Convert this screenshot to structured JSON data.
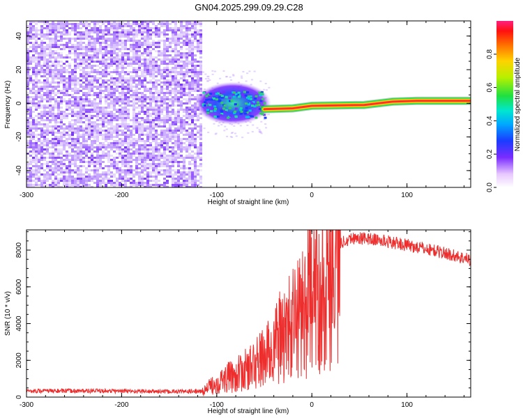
{
  "title": "GN04.2025.299.09.29.C28",
  "colors": {
    "series": "#ee2d2d",
    "ridge": "#ff3030",
    "noise": "#7b2fff",
    "frame": "#000000"
  },
  "chart_data": [
    {
      "type": "heatmap",
      "xlabel": "Height of straight line (km)",
      "ylabel": "Frequency (Hz)",
      "xlim": [
        -300,
        167
      ],
      "ylim": [
        -50,
        49
      ],
      "xticks": [
        "-300",
        "-200",
        "-100",
        "0",
        "100"
      ],
      "yticks": [
        "-40",
        "-20",
        "0",
        "20",
        "40"
      ],
      "xtick_values": [
        -300,
        -200,
        -100,
        0,
        100
      ],
      "ytick_values": [
        -40,
        -20,
        0,
        20,
        40
      ],
      "colorbar": {
        "label": "Normalized spectral amplitude",
        "range": [
          0.0,
          1.0
        ],
        "ticks": [
          "0.0",
          "0.2",
          "0.4",
          "0.6",
          "0.8"
        ],
        "tick_values": [
          0.0,
          0.2,
          0.4,
          0.6,
          0.8
        ]
      },
      "regions": [
        {
          "x_range": [
            -300,
            -116
          ],
          "freq_range": [
            -50,
            49
          ],
          "amplitude": 0.05
        },
        {
          "x_range": [
            -116,
            -50
          ],
          "freq_center": 0,
          "freq_halfwidth": 8,
          "amplitude": 0.45
        },
        {
          "x_range": [
            -50,
            -20
          ],
          "freq_center": -3,
          "freq_halfwidth": 3,
          "amplitude": 0.9
        }
      ],
      "ridge": [
        {
          "x": -50,
          "freq": -3.5
        },
        {
          "x": -20,
          "freq": -3
        },
        {
          "x": 0,
          "freq": -1.5
        },
        {
          "x": 55,
          "freq": -1
        },
        {
          "x": 70,
          "freq": 0
        },
        {
          "x": 85,
          "freq": 1
        },
        {
          "x": 110,
          "freq": 1.5
        },
        {
          "x": 167,
          "freq": 1.5
        }
      ]
    },
    {
      "type": "line",
      "xlabel": "Height of straight line (km)",
      "ylabel": "SNR (10 * v/v)",
      "xlim": [
        -300,
        167
      ],
      "ylim": [
        0,
        9100
      ],
      "xticks": [
        "-300",
        "-200",
        "-100",
        "0",
        "100"
      ],
      "yticks": [
        "0",
        "2000",
        "4000",
        "6000",
        "8000"
      ],
      "xtick_values": [
        -300,
        -200,
        -100,
        0,
        100
      ],
      "ytick_values": [
        0,
        2000,
        4000,
        6000,
        8000
      ],
      "series": [
        {
          "x": [
            -300,
            -250,
            -200,
            -150,
            -115,
            -105,
            -90,
            -75,
            -60,
            -45,
            -35,
            -25,
            -15,
            -5,
            5,
            15,
            25,
            35,
            45,
            60,
            80,
            100,
            130,
            167
          ],
          "y": [
            350,
            350,
            340,
            310,
            320,
            700,
            1100,
            1400,
            1900,
            2600,
            3400,
            3900,
            4700,
            5600,
            6500,
            7300,
            8100,
            8600,
            8700,
            8650,
            8500,
            8300,
            8000,
            7500
          ]
        }
      ]
    }
  ]
}
